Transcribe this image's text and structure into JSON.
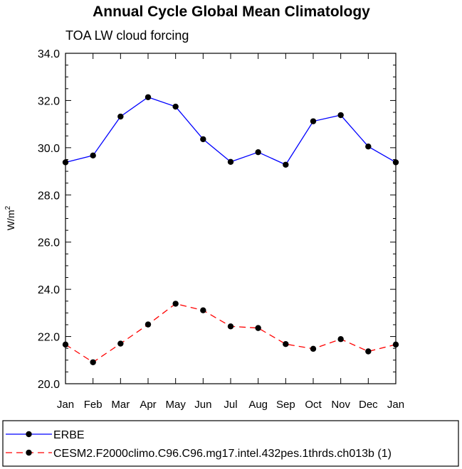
{
  "chart_data": {
    "type": "line",
    "title": "Annual Cycle Global Mean Climatology",
    "subtitle": "TOA LW cloud forcing",
    "ylabel": "W/m",
    "ylabel_sup": "2",
    "xlabel": "",
    "ylim": [
      20.0,
      34.0
    ],
    "yticks": [
      "20.0",
      "22.0",
      "24.0",
      "26.0",
      "28.0",
      "30.0",
      "32.0",
      "34.0"
    ],
    "categories": [
      "Jan",
      "Feb",
      "Mar",
      "Apr",
      "May",
      "Jun",
      "Jul",
      "Aug",
      "Sep",
      "Oct",
      "Nov",
      "Dec",
      "Jan"
    ],
    "series": [
      {
        "name": "ERBE",
        "color": "#0000ff",
        "dash": "solid",
        "values": [
          29.38,
          29.67,
          31.32,
          32.14,
          31.74,
          30.36,
          29.4,
          29.81,
          29.28,
          31.12,
          31.38,
          30.05,
          29.38
        ]
      },
      {
        "name": "CESM2.F2000climo.C96.C96.mg17.intel.432pes.1thrds.ch013b (1)",
        "color": "#ff0000",
        "dash": "dashed",
        "values": [
          21.66,
          20.91,
          21.7,
          22.51,
          23.39,
          23.11,
          22.43,
          22.36,
          21.68,
          21.48,
          21.89,
          21.37,
          21.66
        ]
      }
    ],
    "legend_position": "bottom"
  }
}
